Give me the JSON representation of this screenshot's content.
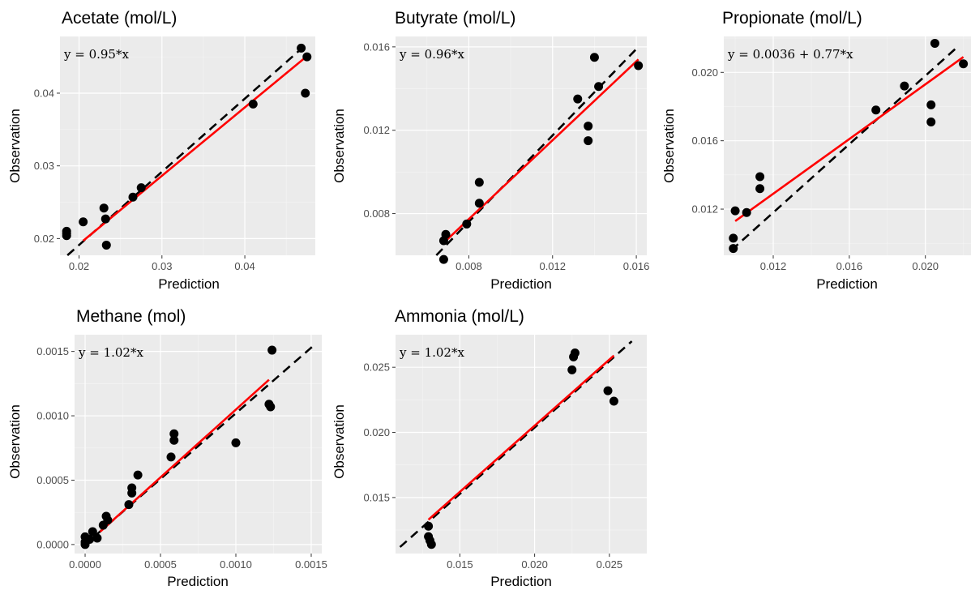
{
  "chart_data": [
    {
      "type": "scatter",
      "title": "Acetate (mol/L)",
      "xlabel": "Prediction",
      "ylabel": "Observation",
      "equation": "y = 0.95*x",
      "xlim": [
        0.0177,
        0.0485
      ],
      "ylim": [
        0.0177,
        0.0478
      ],
      "xticks": [
        0.02,
        0.03,
        0.04
      ],
      "xtick_labels": [
        "0.02",
        "0.03",
        "0.04"
      ],
      "yticks": [
        0.02,
        0.03,
        0.04
      ],
      "ytick_labels": [
        "0.02",
        "0.03",
        "0.04"
      ],
      "points": [
        [
          0.0185,
          0.021
        ],
        [
          0.0185,
          0.0207
        ],
        [
          0.0185,
          0.0204
        ],
        [
          0.0205,
          0.0223
        ],
        [
          0.023,
          0.0242
        ],
        [
          0.0232,
          0.0227
        ],
        [
          0.0233,
          0.0191
        ],
        [
          0.0265,
          0.0257
        ],
        [
          0.0275,
          0.027
        ],
        [
          0.041,
          0.0385
        ],
        [
          0.0468,
          0.0462
        ],
        [
          0.0473,
          0.04
        ],
        [
          0.0475,
          0.045
        ]
      ],
      "fit_line": [
        [
          0.0205,
          0.0197
        ],
        [
          0.0475,
          0.0451
        ]
      ],
      "ref_line": [
        [
          0.018,
          0.0171
        ],
        [
          0.0475,
          0.0468
        ]
      ],
      "grid": true
    },
    {
      "type": "scatter",
      "title": "Butyrate (mol/L)",
      "xlabel": "Prediction",
      "ylabel": "Observation",
      "equation": "y = 0.96*x",
      "xlim": [
        0.0045,
        0.0165
      ],
      "ylim": [
        0.006,
        0.0165
      ],
      "xticks": [
        0.008,
        0.012,
        0.016
      ],
      "xtick_labels": [
        "0.008",
        "0.012",
        "0.016"
      ],
      "yticks": [
        0.008,
        0.012,
        0.016
      ],
      "ytick_labels": [
        "0.008",
        "0.012",
        "0.016"
      ],
      "points": [
        [
          0.0068,
          0.0067
        ],
        [
          0.0068,
          0.0058
        ],
        [
          0.0069,
          0.007
        ],
        [
          0.0079,
          0.0075
        ],
        [
          0.0085,
          0.0085
        ],
        [
          0.0085,
          0.0095
        ],
        [
          0.0132,
          0.0135
        ],
        [
          0.0137,
          0.0122
        ],
        [
          0.0137,
          0.0115
        ],
        [
          0.014,
          0.0155
        ],
        [
          0.0142,
          0.0141
        ],
        [
          0.0161,
          0.0151
        ]
      ],
      "fit_line": [
        [
          0.0068,
          0.0066
        ],
        [
          0.0161,
          0.0154
        ]
      ],
      "ref_line": [
        [
          0.005,
          0.0045
        ],
        [
          0.0161,
          0.016
        ]
      ],
      "grid": true
    },
    {
      "type": "scatter",
      "title": "Propionate (mol/L)",
      "xlabel": "Prediction",
      "ylabel": "Observation",
      "equation": "y = 0.0036 + 0.77*x",
      "xlim": [
        0.0094,
        0.0224
      ],
      "ylim": [
        0.0093,
        0.0221
      ],
      "xticks": [
        0.012,
        0.016,
        0.02
      ],
      "xtick_labels": [
        "0.012",
        "0.016",
        "0.020"
      ],
      "yticks": [
        0.012,
        0.016,
        0.02
      ],
      "ytick_labels": [
        "0.012",
        "0.016",
        "0.020"
      ],
      "points": [
        [
          0.0099,
          0.0097
        ],
        [
          0.0099,
          0.0103
        ],
        [
          0.01,
          0.0119
        ],
        [
          0.0106,
          0.0118
        ],
        [
          0.0113,
          0.0132
        ],
        [
          0.0113,
          0.0139
        ],
        [
          0.0174,
          0.0178
        ],
        [
          0.0189,
          0.0192
        ],
        [
          0.0203,
          0.0181
        ],
        [
          0.0203,
          0.0171
        ],
        [
          0.0205,
          0.0217
        ],
        [
          0.022,
          0.0205
        ]
      ],
      "fit_line": [
        [
          0.01,
          0.0113
        ],
        [
          0.022,
          0.0209
        ]
      ],
      "ref_line": [
        [
          0.0098,
          0.0096
        ],
        [
          0.0216,
          0.0214
        ]
      ],
      "grid": true
    },
    {
      "type": "scatter",
      "title": "Methane (mol)",
      "xlabel": "Prediction",
      "ylabel": "Observation",
      "equation": "y = 1.02*x",
      "xlim": [
        -7e-05,
        0.00157
      ],
      "ylim": [
        -7e-05,
        0.00163
      ],
      "xticks": [
        0.0,
        0.0005,
        0.001,
        0.0015
      ],
      "xtick_labels": [
        "0.0000",
        "0.0005",
        "0.0010",
        "0.0015"
      ],
      "yticks": [
        0.0,
        0.0005,
        0.001,
        0.0015
      ],
      "ytick_labels": [
        "0.0000",
        "0.0005",
        "0.0010",
        "0.0015"
      ],
      "points": [
        [
          0.0,
          6e-05
        ],
        [
          0.0,
          2e-05
        ],
        [
          0.0,
          0.0
        ],
        [
          3e-05,
          4e-05
        ],
        [
          5e-05,
          0.0001
        ],
        [
          8e-05,
          5e-05
        ],
        [
          0.00012,
          0.00015
        ],
        [
          0.00014,
          0.00022
        ],
        [
          0.00015,
          0.00019
        ],
        [
          0.00029,
          0.00031
        ],
        [
          0.00031,
          0.0004
        ],
        [
          0.00031,
          0.00044
        ],
        [
          0.00035,
          0.00054
        ],
        [
          0.00057,
          0.00068
        ],
        [
          0.00059,
          0.00081
        ],
        [
          0.00059,
          0.00086
        ],
        [
          0.001,
          0.00079
        ],
        [
          0.00122,
          0.00109
        ],
        [
          0.00123,
          0.00107
        ],
        [
          0.00124,
          0.00151
        ]
      ],
      "fit_line": [
        [
          0.0001,
          0.0001
        ],
        [
          0.00122,
          0.00128
        ]
      ],
      "ref_line": [
        [
          0.0,
          0.0
        ],
        [
          0.00152,
          0.00155
        ]
      ],
      "grid": true
    },
    {
      "type": "scatter",
      "title": "Ammonia (mol/L)",
      "xlabel": "Prediction",
      "ylabel": "Observation",
      "equation": "y = 1.02*x",
      "xlim": [
        0.0107,
        0.0275
      ],
      "ylim": [
        0.0107,
        0.0275
      ],
      "xticks": [
        0.015,
        0.02,
        0.025
      ],
      "xtick_labels": [
        "0.015",
        "0.020",
        "0.025"
      ],
      "yticks": [
        0.015,
        0.02,
        0.025
      ],
      "ytick_labels": [
        "0.015",
        "0.020",
        "0.025"
      ],
      "points": [
        [
          0.0129,
          0.0128
        ],
        [
          0.0129,
          0.012
        ],
        [
          0.013,
          0.0117
        ],
        [
          0.0131,
          0.0114
        ],
        [
          0.0225,
          0.0248
        ],
        [
          0.0226,
          0.0258
        ],
        [
          0.0227,
          0.0261
        ],
        [
          0.0249,
          0.0232
        ],
        [
          0.0253,
          0.0224
        ]
      ],
      "fit_line": [
        [
          0.0129,
          0.0133
        ],
        [
          0.0253,
          0.0259
        ]
      ],
      "ref_line": [
        [
          0.011,
          0.0112
        ],
        [
          0.0265,
          0.027
        ]
      ],
      "grid": true
    }
  ],
  "colors": {
    "panel_background": "#ebebeb",
    "grid": "#ffffff",
    "points": "#000000",
    "fit_line": "#ff0000",
    "ref_line": "#000000"
  }
}
